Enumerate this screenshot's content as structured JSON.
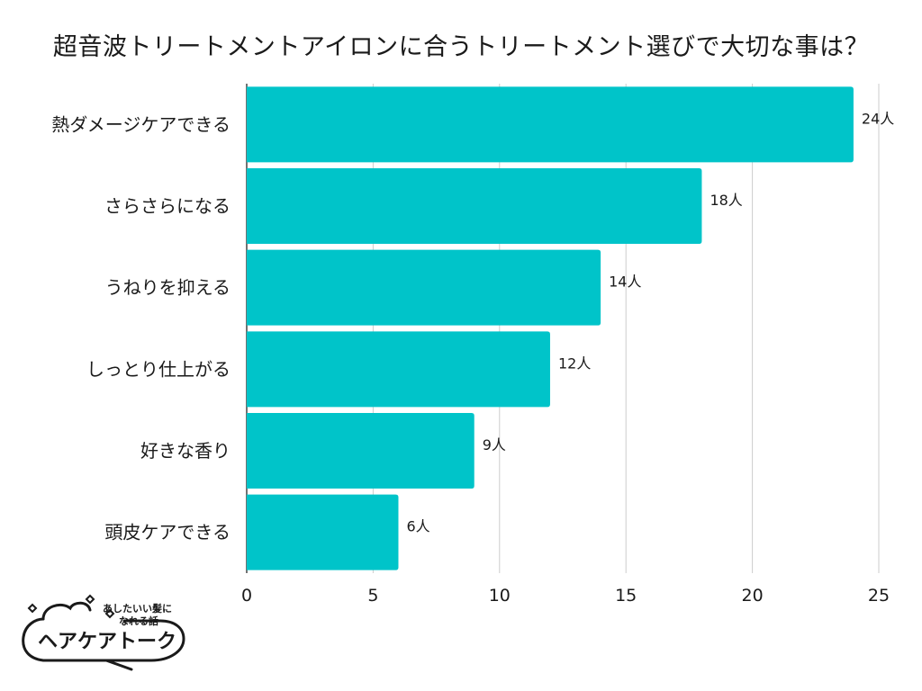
{
  "chart_data": {
    "type": "bar",
    "orientation": "horizontal",
    "title": "超音波トリートメントアイロンに合うトリートメント選びで大切な事は？",
    "categories": [
      "熱ダメージケアできる",
      "さらさらになる",
      "うねりを抑える",
      "しっとり仕上がる",
      "好きな香り",
      "頭皮ケアできる"
    ],
    "values": [
      24,
      18,
      14,
      12,
      9,
      6
    ],
    "value_suffix": "人",
    "xlim": [
      0,
      25
    ],
    "xticks": [
      0,
      5,
      10,
      15,
      20,
      25
    ],
    "xlabel": "",
    "ylabel": "",
    "grid": true,
    "bar_color": "#00C4C9"
  },
  "brand": {
    "tagline_line1": "あしたいい髪に",
    "tagline_line2": "なれる話",
    "name": "ヘアケアトーク"
  }
}
